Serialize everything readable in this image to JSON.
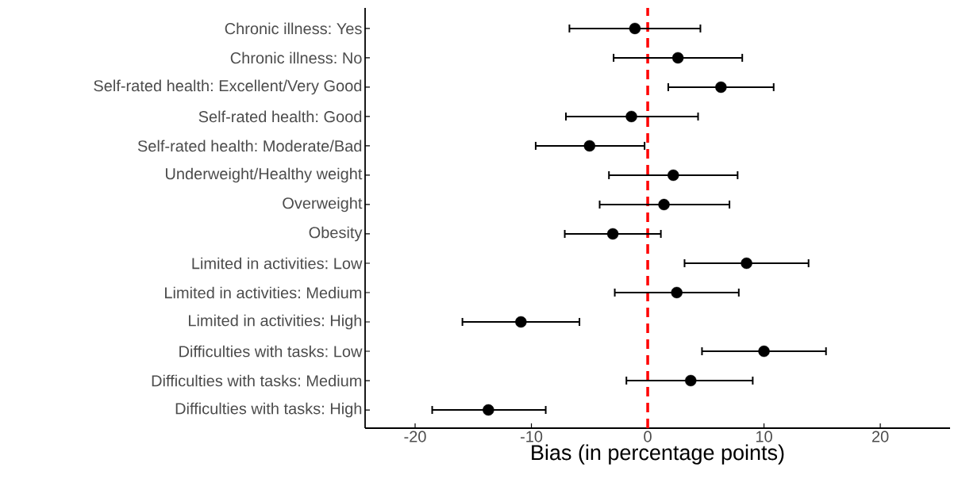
{
  "chart_data": {
    "type": "scatter",
    "orientation": "horizontal",
    "xlabel": "Bias (in percentage points)",
    "categories": [
      "Chronic illness: Yes",
      "Chronic illness: No",
      "Self-rated health: Excellent/Very Good",
      "Self-rated health: Good",
      "Self-rated health: Moderate/Bad",
      "Underweight/Healthy weight",
      "Overweight",
      "Obesity",
      "Limited in activities: Low",
      "Limited in activities: Medium",
      "Limited in activities: High",
      "Difficulties with tasks: Low",
      "Difficulties with tasks: Medium",
      "Difficulties with tasks: High"
    ],
    "values": [
      -1.1,
      2.6,
      6.3,
      -1.4,
      -5.0,
      2.2,
      1.4,
      -3.0,
      8.5,
      2.5,
      -10.9,
      10.0,
      3.7,
      -13.7
    ],
    "errors": [
      [
        -6.8,
        4.6
      ],
      [
        -3.0,
        8.2
      ],
      [
        1.7,
        10.9
      ],
      [
        -7.1,
        4.4
      ],
      [
        -9.7,
        -0.2
      ],
      [
        -3.4,
        7.8
      ],
      [
        -4.2,
        7.1
      ],
      [
        -7.2,
        1.2
      ],
      [
        3.1,
        13.9
      ],
      [
        -2.9,
        7.9
      ],
      [
        -16.0,
        -5.8
      ],
      [
        4.6,
        15.4
      ],
      [
        -1.9,
        9.1
      ],
      [
        -18.6,
        -8.7
      ]
    ],
    "color": "#000000",
    "xlim": [
      -24.3,
      26
    ],
    "xticks": [
      -20,
      -10,
      0,
      10,
      20
    ],
    "ref_lines": [
      {
        "axis": "x",
        "value": 0,
        "color": "#ff0000",
        "line_style": "dashed"
      }
    ],
    "grid": false
  }
}
